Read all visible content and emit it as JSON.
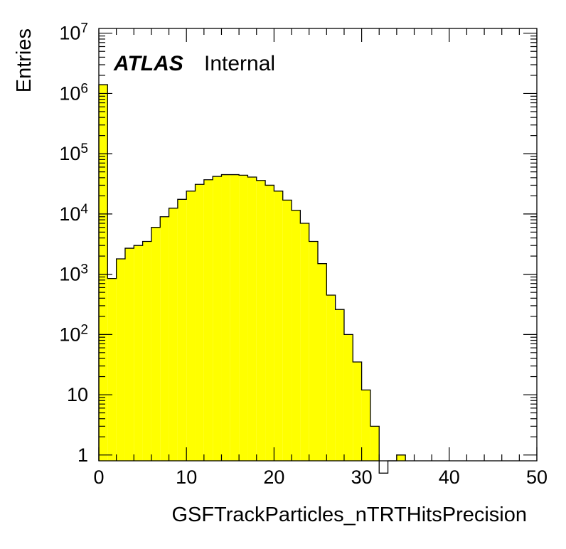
{
  "chart_data": {
    "type": "bar",
    "subtype": "histogram",
    "title": "",
    "xlabel": "GSFTrackParticles_nTRTHitsPrecision",
    "ylabel": "Entries",
    "xlim": [
      0,
      50
    ],
    "ylim": [
      0.8,
      12000000
    ],
    "yscale": "log",
    "grid": false,
    "legend": "none",
    "bin_width": 1,
    "bin_edges_start": 0,
    "values": [
      1400000,
      850,
      1800,
      2700,
      3000,
      3500,
      6000,
      9000,
      12500,
      17500,
      24000,
      31000,
      37000,
      42000,
      45000,
      45000,
      44000,
      41000,
      36000,
      30000,
      24000,
      17000,
      11500,
      7000,
      3500,
      1500,
      450,
      260,
      100,
      35,
      12,
      3,
      0.5,
      0,
      1
    ],
    "x_ticks": [
      "0",
      "10",
      "20",
      "30",
      "40",
      "50"
    ],
    "y_ticks": [
      {
        "base": "1",
        "exp": ""
      },
      {
        "base": "10",
        "exp": ""
      },
      {
        "base": "10",
        "exp": "2"
      },
      {
        "base": "10",
        "exp": "3"
      },
      {
        "base": "10",
        "exp": "4"
      },
      {
        "base": "10",
        "exp": "5"
      },
      {
        "base": "10",
        "exp": "6"
      },
      {
        "base": "10",
        "exp": "7"
      }
    ],
    "fill_color": "#ffff00",
    "line_color": "#000000"
  },
  "annotation": {
    "experiment": "ATLAS",
    "status": "Internal"
  }
}
